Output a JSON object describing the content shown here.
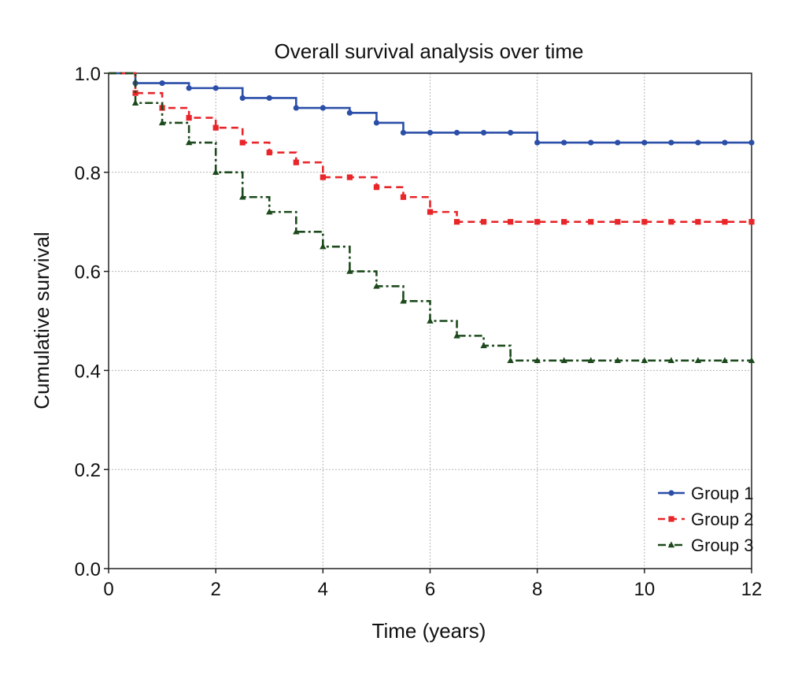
{
  "chart_data": {
    "type": "line",
    "subtype": "kaplan-meier-step",
    "title": "Overall survival analysis over time",
    "xlabel": "Time (years)",
    "ylabel": "Cumulative survival",
    "xlim": [
      0,
      12
    ],
    "ylim": [
      0,
      1.0
    ],
    "x_ticks": [
      0,
      2,
      4,
      6,
      8,
      10,
      12
    ],
    "x_tick_labels": [
      "0",
      "2",
      "4",
      "6",
      "8",
      "10",
      "12"
    ],
    "y_ticks": [
      0,
      0.2,
      0.4,
      0.6,
      0.8,
      1.0
    ],
    "y_tick_labels": [
      "0.0",
      "0.2",
      "0.4",
      "0.6",
      "0.8",
      "1.0"
    ],
    "grid": true,
    "legend_position": "bottom-right",
    "series": [
      {
        "name": "Group 1",
        "color": "#2b4fa8",
        "line_style": "solid",
        "marker": "circle",
        "steps": [
          [
            0,
            1.0
          ],
          [
            0.5,
            0.98
          ],
          [
            1.5,
            0.97
          ],
          [
            2.5,
            0.95
          ],
          [
            3.5,
            0.93
          ],
          [
            4.5,
            0.92
          ],
          [
            5,
            0.9
          ],
          [
            5.5,
            0.88
          ],
          [
            8,
            0.86
          ],
          [
            12,
            0.86
          ]
        ],
        "censor_marks": [
          [
            0.5,
            0.98
          ],
          [
            1,
            0.98
          ],
          [
            1.5,
            0.97
          ],
          [
            2,
            0.97
          ],
          [
            2.5,
            0.95
          ],
          [
            3,
            0.95
          ],
          [
            3.5,
            0.93
          ],
          [
            4,
            0.93
          ],
          [
            4.5,
            0.92
          ],
          [
            5,
            0.9
          ],
          [
            5.5,
            0.88
          ],
          [
            6,
            0.88
          ],
          [
            6.5,
            0.88
          ],
          [
            7,
            0.88
          ],
          [
            7.5,
            0.88
          ],
          [
            8,
            0.86
          ],
          [
            8.5,
            0.86
          ],
          [
            9,
            0.86
          ],
          [
            9.5,
            0.86
          ],
          [
            10,
            0.86
          ],
          [
            10.5,
            0.86
          ],
          [
            11,
            0.86
          ],
          [
            11.5,
            0.86
          ],
          [
            12,
            0.86
          ]
        ]
      },
      {
        "name": "Group 2",
        "color": "#e8262a",
        "line_style": "dashed",
        "marker": "square",
        "steps": [
          [
            0,
            1.0
          ],
          [
            0.5,
            0.96
          ],
          [
            1,
            0.93
          ],
          [
            1.5,
            0.91
          ],
          [
            2,
            0.89
          ],
          [
            2.5,
            0.86
          ],
          [
            3,
            0.84
          ],
          [
            3.5,
            0.82
          ],
          [
            4,
            0.79
          ],
          [
            5,
            0.77
          ],
          [
            5.5,
            0.75
          ],
          [
            6,
            0.72
          ],
          [
            6.5,
            0.7
          ],
          [
            12,
            0.7
          ]
        ],
        "censor_marks": [
          [
            0.5,
            0.96
          ],
          [
            1,
            0.93
          ],
          [
            1.5,
            0.91
          ],
          [
            2,
            0.89
          ],
          [
            2.5,
            0.86
          ],
          [
            3,
            0.84
          ],
          [
            3.5,
            0.82
          ],
          [
            4,
            0.79
          ],
          [
            4.5,
            0.79
          ],
          [
            5,
            0.77
          ],
          [
            5.5,
            0.75
          ],
          [
            6,
            0.72
          ],
          [
            6.5,
            0.7
          ],
          [
            7,
            0.7
          ],
          [
            7.5,
            0.7
          ],
          [
            8,
            0.7
          ],
          [
            8.5,
            0.7
          ],
          [
            9,
            0.7
          ],
          [
            9.5,
            0.7
          ],
          [
            10,
            0.7
          ],
          [
            10.5,
            0.7
          ],
          [
            11,
            0.7
          ],
          [
            11.5,
            0.7
          ],
          [
            12,
            0.7
          ]
        ]
      },
      {
        "name": "Group 3",
        "color": "#1c4a1c",
        "line_style": "dashdot",
        "marker": "triangle",
        "steps": [
          [
            0,
            1.0
          ],
          [
            0.5,
            0.94
          ],
          [
            1,
            0.9
          ],
          [
            1.5,
            0.86
          ],
          [
            2,
            0.8
          ],
          [
            2.5,
            0.75
          ],
          [
            3,
            0.72
          ],
          [
            3.5,
            0.68
          ],
          [
            4,
            0.65
          ],
          [
            4.5,
            0.6
          ],
          [
            5,
            0.57
          ],
          [
            5.5,
            0.54
          ],
          [
            6,
            0.5
          ],
          [
            6.5,
            0.47
          ],
          [
            7,
            0.45
          ],
          [
            7.5,
            0.42
          ],
          [
            12,
            0.42
          ]
        ],
        "censor_marks": [
          [
            0.5,
            0.94
          ],
          [
            1,
            0.9
          ],
          [
            1.5,
            0.86
          ],
          [
            2,
            0.8
          ],
          [
            2.5,
            0.75
          ],
          [
            3,
            0.72
          ],
          [
            3.5,
            0.68
          ],
          [
            4,
            0.65
          ],
          [
            4.5,
            0.6
          ],
          [
            5,
            0.57
          ],
          [
            5.5,
            0.54
          ],
          [
            6,
            0.5
          ],
          [
            6.5,
            0.47
          ],
          [
            7,
            0.45
          ],
          [
            7.5,
            0.42
          ],
          [
            8,
            0.42
          ],
          [
            8.5,
            0.42
          ],
          [
            9,
            0.42
          ],
          [
            9.5,
            0.42
          ],
          [
            10,
            0.42
          ],
          [
            10.5,
            0.42
          ],
          [
            11,
            0.42
          ],
          [
            11.5,
            0.42
          ],
          [
            12,
            0.42
          ]
        ]
      }
    ]
  }
}
